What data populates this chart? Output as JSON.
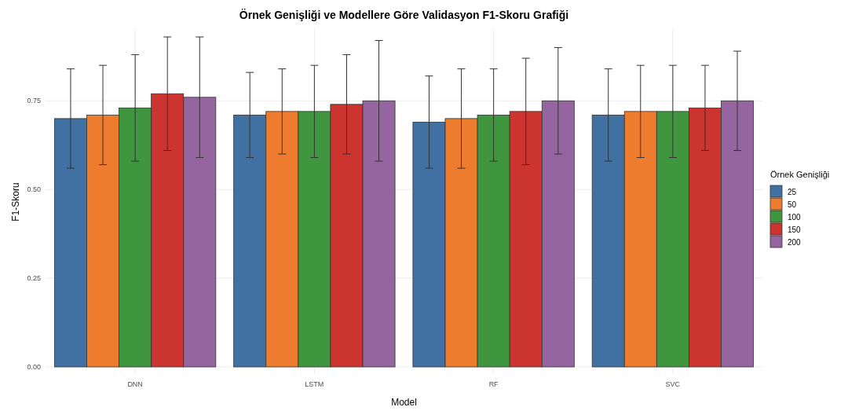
{
  "chart_data": {
    "type": "bar",
    "title": "Örnek Genişliği ve Modellere Göre Validasyon F1-Skoru Grafiği",
    "xlabel": "Model",
    "ylabel": "F1-Skoru",
    "legend_title": "Örnek Genişliği",
    "categories": [
      "DNN",
      "LSTM",
      "RF",
      "SVC"
    ],
    "series": [
      {
        "name": "25",
        "color": "#4170a3",
        "values": [
          0.7,
          0.71,
          0.69,
          0.71
        ],
        "errors": [
          [
            0.56,
            0.84
          ],
          [
            0.59,
            0.83
          ],
          [
            0.56,
            0.82
          ],
          [
            0.58,
            0.84
          ]
        ]
      },
      {
        "name": "50",
        "color": "#ee7c2f",
        "values": [
          0.71,
          0.72,
          0.7,
          0.72
        ],
        "errors": [
          [
            0.57,
            0.85
          ],
          [
            0.6,
            0.84
          ],
          [
            0.56,
            0.84
          ],
          [
            0.59,
            0.85
          ]
        ]
      },
      {
        "name": "100",
        "color": "#3f963f",
        "values": [
          0.73,
          0.72,
          0.71,
          0.72
        ],
        "errors": [
          [
            0.58,
            0.88
          ],
          [
            0.59,
            0.85
          ],
          [
            0.58,
            0.84
          ],
          [
            0.59,
            0.85
          ]
        ]
      },
      {
        "name": "150",
        "color": "#cb342f",
        "values": [
          0.77,
          0.74,
          0.72,
          0.73
        ],
        "errors": [
          [
            0.61,
            0.93
          ],
          [
            0.6,
            0.88
          ],
          [
            0.57,
            0.87
          ],
          [
            0.61,
            0.85
          ]
        ]
      },
      {
        "name": "200",
        "color": "#94659e",
        "values": [
          0.76,
          0.75,
          0.75,
          0.75
        ],
        "errors": [
          [
            0.59,
            0.93
          ],
          [
            0.58,
            0.92
          ],
          [
            0.6,
            0.9
          ],
          [
            0.61,
            0.89
          ]
        ]
      }
    ],
    "ylim": [
      -0.02,
      0.95
    ],
    "yticks": [
      {
        "value": 0,
        "label": "0.00"
      },
      {
        "value": 0.25,
        "label": "0.25"
      },
      {
        "value": 0.5,
        "label": "0.50"
      },
      {
        "value": 0.75,
        "label": "0.75"
      }
    ],
    "grid": true,
    "legend": "right"
  }
}
